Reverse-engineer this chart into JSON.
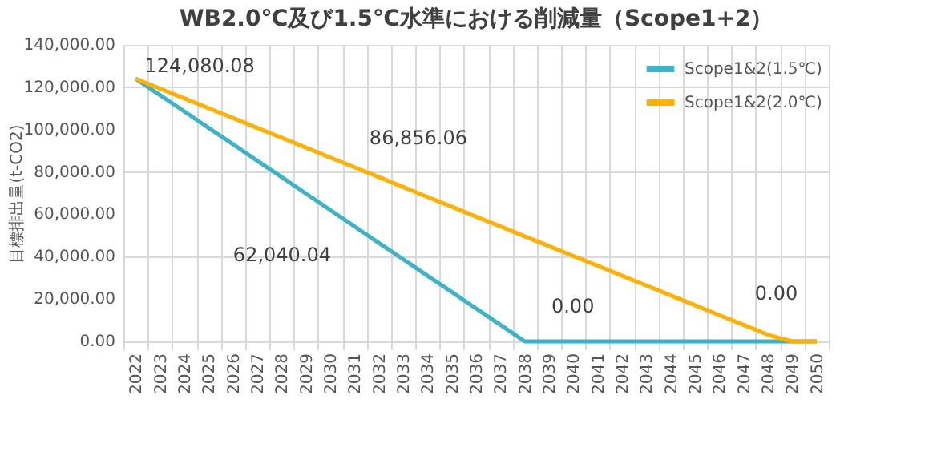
{
  "chart_data": {
    "type": "line",
    "title": "WB2.0℃及び1.5℃水準における削減量（Scope1+2）",
    "ylabel": "目標排出量(t-CO2)",
    "categories": [
      "2022",
      "2023",
      "2024",
      "2025",
      "2026",
      "2027",
      "2028",
      "2029",
      "2030",
      "2031",
      "2032",
      "2033",
      "2034",
      "2035",
      "2036",
      "2037",
      "2038",
      "2039",
      "2040",
      "2041",
      "2042",
      "2043",
      "2044",
      "2045",
      "2046",
      "2047",
      "2048",
      "2049",
      "2050"
    ],
    "series": [
      {
        "name": "Scope1&2(1.5℃)",
        "color": "#3bb4c9",
        "values": [
          124080.08,
          116300,
          108600,
          100800,
          93100,
          85300,
          77600,
          69800,
          62040.04,
          54300,
          46500,
          38800,
          31000,
          23300,
          15500,
          7800,
          0,
          0,
          0,
          0,
          0,
          0,
          0,
          0,
          0,
          0,
          0,
          0,
          0
        ]
      },
      {
        "name": "Scope1&2(2.0℃)",
        "color": "#ffb000",
        "values": [
          124080.08,
          119400,
          114800,
          110100,
          105500,
          100800,
          96200,
          91500,
          86856.06,
          82200,
          77600,
          72900,
          68200,
          63600,
          58900,
          54300,
          49600,
          45000,
          40300,
          35700,
          31000,
          26400,
          21700,
          17100,
          12400,
          7800,
          3100,
          0,
          0
        ]
      }
    ],
    "ylim": [
      0,
      140000
    ],
    "yticks": [
      {
        "value": 0,
        "label": "0.00"
      },
      {
        "value": 20000,
        "label": "20,000.00"
      },
      {
        "value": 40000,
        "label": "40,000.00"
      },
      {
        "value": 60000,
        "label": "60,000.00"
      },
      {
        "value": 80000,
        "label": "80,000.00"
      },
      {
        "value": 100000,
        "label": "100,000.00"
      },
      {
        "value": 120000,
        "label": "120,000.00"
      },
      {
        "value": 140000,
        "label": "140,000.00"
      }
    ],
    "annotations": [
      {
        "text": "124,080.08",
        "x": "2022",
        "y": 124080.08
      },
      {
        "text": "86,856.06",
        "x": "2030",
        "y": 86856.06
      },
      {
        "text": "62,040.04",
        "x": "2030",
        "y": 62040.04
      },
      {
        "text": "0.00",
        "x": "2038",
        "y": 0
      },
      {
        "text": "0.00",
        "x": "2049",
        "y": 0
      }
    ],
    "grid": true,
    "legend": "top right",
    "marker": "none",
    "line_style": "solid"
  }
}
